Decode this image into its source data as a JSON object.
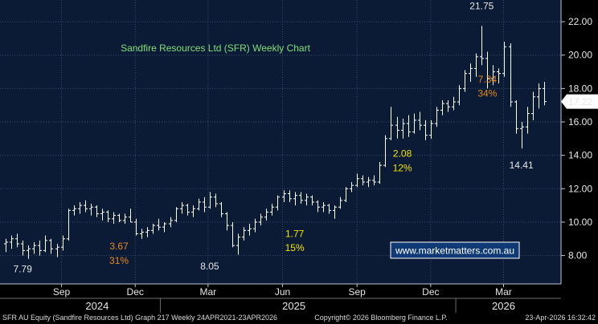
{
  "colors": {
    "background": "#000000",
    "plot_background": "#0b1b35",
    "grid": "#3a4d6e",
    "bars": "#ffffff",
    "title": "#7fe07a",
    "annotation_yellow": "#f2e400",
    "annotation_orange": "#e98a1d",
    "annotation_white": "#e6e6e6",
    "watermark_border": "#ffffff",
    "watermark_bg": "#0f3a75"
  },
  "chart_data": {
    "type": "ohlc",
    "title": "Sandfire Resources Ltd (SFR) Weekly Chart",
    "ylim": [
      6.3,
      23.3
    ],
    "y_ticks": [
      8,
      10,
      12,
      14,
      16,
      18,
      20,
      22
    ],
    "y_tick_labels": [
      "8.00",
      "10.00",
      "12.00",
      "14.00",
      "16.00",
      "18.00",
      "20.00",
      "22.00"
    ],
    "x_start": "2024-06-17",
    "x_end": "2026-05-11",
    "x_ticks": [
      {
        "label": "Sep",
        "date": "2024-09-01"
      },
      {
        "label": "Dec",
        "date": "2024-12-01"
      },
      {
        "label": "Mar",
        "date": "2025-03-01"
      },
      {
        "label": "Jun",
        "date": "2025-06-01"
      },
      {
        "label": "Sep",
        "date": "2025-09-01"
      },
      {
        "label": "Dec",
        "date": "2025-12-01"
      },
      {
        "label": "Mar",
        "date": "2026-03-01"
      }
    ],
    "years": [
      {
        "label": "2024",
        "date": "2024-10-15"
      },
      {
        "label": "2025",
        "date": "2025-06-15"
      },
      {
        "label": "2026",
        "date": "2026-03-01"
      }
    ],
    "last_price": "17.22",
    "last_price_value": 17.22,
    "bars": [
      {
        "x": "2024-06-24",
        "o": 8.7,
        "h": 9.0,
        "l": 8.2,
        "c": 8.8
      },
      {
        "x": "2024-07-01",
        "o": 8.8,
        "h": 9.2,
        "l": 8.4,
        "c": 9.0
      },
      {
        "x": "2024-07-08",
        "o": 9.0,
        "h": 9.3,
        "l": 8.5,
        "c": 8.7
      },
      {
        "x": "2024-07-15",
        "o": 8.7,
        "h": 8.9,
        "l": 8.0,
        "c": 8.3
      },
      {
        "x": "2024-07-22",
        "o": 8.3,
        "h": 8.6,
        "l": 7.8,
        "c": 8.4
      },
      {
        "x": "2024-07-29",
        "o": 8.4,
        "h": 8.8,
        "l": 8.1,
        "c": 8.6
      },
      {
        "x": "2024-08-05",
        "o": 8.6,
        "h": 8.9,
        "l": 8.0,
        "c": 8.3
      },
      {
        "x": "2024-08-12",
        "o": 8.3,
        "h": 9.2,
        "l": 8.2,
        "c": 8.9
      },
      {
        "x": "2024-08-19",
        "o": 8.9,
        "h": 9.0,
        "l": 8.1,
        "c": 8.4
      },
      {
        "x": "2024-08-26",
        "o": 8.4,
        "h": 8.7,
        "l": 7.9,
        "c": 8.5
      },
      {
        "x": "2024-09-02",
        "o": 8.5,
        "h": 9.2,
        "l": 8.3,
        "c": 9.0
      },
      {
        "x": "2024-09-09",
        "o": 9.0,
        "h": 10.8,
        "l": 8.9,
        "c": 10.7
      },
      {
        "x": "2024-09-16",
        "o": 10.7,
        "h": 11.0,
        "l": 10.4,
        "c": 10.8
      },
      {
        "x": "2024-09-23",
        "o": 10.8,
        "h": 11.2,
        "l": 10.5,
        "c": 11.0
      },
      {
        "x": "2024-09-30",
        "o": 11.0,
        "h": 11.3,
        "l": 10.6,
        "c": 10.8
      },
      {
        "x": "2024-10-07",
        "o": 10.8,
        "h": 11.1,
        "l": 10.4,
        "c": 10.9
      },
      {
        "x": "2024-10-14",
        "o": 10.9,
        "h": 11.0,
        "l": 10.3,
        "c": 10.5
      },
      {
        "x": "2024-10-21",
        "o": 10.5,
        "h": 10.8,
        "l": 10.1,
        "c": 10.6
      },
      {
        "x": "2024-10-28",
        "o": 10.6,
        "h": 10.7,
        "l": 10.0,
        "c": 10.2
      },
      {
        "x": "2024-11-04",
        "o": 10.2,
        "h": 10.6,
        "l": 9.9,
        "c": 10.4
      },
      {
        "x": "2024-11-11",
        "o": 10.4,
        "h": 10.5,
        "l": 10.0,
        "c": 10.1
      },
      {
        "x": "2024-11-18",
        "o": 10.1,
        "h": 10.5,
        "l": 9.9,
        "c": 10.3
      },
      {
        "x": "2024-11-25",
        "o": 10.3,
        "h": 10.8,
        "l": 10.0,
        "c": 10.0
      },
      {
        "x": "2024-12-02",
        "o": 10.0,
        "h": 10.2,
        "l": 9.2,
        "c": 9.3
      },
      {
        "x": "2024-12-09",
        "o": 9.3,
        "h": 9.6,
        "l": 9.0,
        "c": 9.4
      },
      {
        "x": "2024-12-16",
        "o": 9.4,
        "h": 9.7,
        "l": 9.1,
        "c": 9.5
      },
      {
        "x": "2024-12-23",
        "o": 9.5,
        "h": 9.9,
        "l": 9.3,
        "c": 9.8
      },
      {
        "x": "2024-12-30",
        "o": 9.8,
        "h": 10.2,
        "l": 9.5,
        "c": 9.7
      },
      {
        "x": "2025-01-06",
        "o": 9.7,
        "h": 10.0,
        "l": 9.4,
        "c": 9.9
      },
      {
        "x": "2025-01-13",
        "o": 9.9,
        "h": 10.3,
        "l": 9.7,
        "c": 10.1
      },
      {
        "x": "2025-01-20",
        "o": 10.1,
        "h": 10.9,
        "l": 10.0,
        "c": 10.8
      },
      {
        "x": "2025-01-27",
        "o": 10.8,
        "h": 11.2,
        "l": 10.5,
        "c": 11.0
      },
      {
        "x": "2025-02-03",
        "o": 11.0,
        "h": 11.1,
        "l": 10.4,
        "c": 10.6
      },
      {
        "x": "2025-02-10",
        "o": 10.6,
        "h": 11.0,
        "l": 10.3,
        "c": 10.8
      },
      {
        "x": "2025-02-17",
        "o": 10.8,
        "h": 11.4,
        "l": 10.7,
        "c": 11.2
      },
      {
        "x": "2025-02-24",
        "o": 11.2,
        "h": 11.5,
        "l": 10.6,
        "c": 10.9
      },
      {
        "x": "2025-03-03",
        "o": 10.9,
        "h": 11.8,
        "l": 10.8,
        "c": 11.5
      },
      {
        "x": "2025-03-10",
        "o": 11.5,
        "h": 11.7,
        "l": 10.9,
        "c": 11.1
      },
      {
        "x": "2025-03-17",
        "o": 11.1,
        "h": 11.2,
        "l": 10.3,
        "c": 10.5
      },
      {
        "x": "2025-03-24",
        "o": 10.5,
        "h": 10.6,
        "l": 9.5,
        "c": 9.8
      },
      {
        "x": "2025-03-31",
        "o": 9.8,
        "h": 10.0,
        "l": 8.5,
        "c": 8.6
      },
      {
        "x": "2025-04-07",
        "o": 8.6,
        "h": 9.3,
        "l": 8.05,
        "c": 9.1
      },
      {
        "x": "2025-04-14",
        "o": 9.1,
        "h": 9.7,
        "l": 8.9,
        "c": 9.5
      },
      {
        "x": "2025-04-21",
        "o": 9.5,
        "h": 9.9,
        "l": 9.2,
        "c": 9.6
      },
      {
        "x": "2025-04-28",
        "o": 9.6,
        "h": 10.2,
        "l": 9.4,
        "c": 10.0
      },
      {
        "x": "2025-05-05",
        "o": 10.0,
        "h": 10.5,
        "l": 9.8,
        "c": 10.3
      },
      {
        "x": "2025-05-12",
        "o": 10.3,
        "h": 10.8,
        "l": 10.1,
        "c": 10.6
      },
      {
        "x": "2025-05-19",
        "o": 10.6,
        "h": 11.1,
        "l": 10.4,
        "c": 10.9
      },
      {
        "x": "2025-05-26",
        "o": 10.9,
        "h": 11.6,
        "l": 10.7,
        "c": 11.5
      },
      {
        "x": "2025-06-02",
        "o": 11.5,
        "h": 11.9,
        "l": 11.2,
        "c": 11.7
      },
      {
        "x": "2025-06-09",
        "o": 11.7,
        "h": 11.9,
        "l": 11.2,
        "c": 11.4
      },
      {
        "x": "2025-06-16",
        "o": 11.4,
        "h": 11.8,
        "l": 11.0,
        "c": 11.6
      },
      {
        "x": "2025-06-23",
        "o": 11.6,
        "h": 11.8,
        "l": 11.1,
        "c": 11.3
      },
      {
        "x": "2025-06-30",
        "o": 11.3,
        "h": 11.7,
        "l": 11.0,
        "c": 11.5
      },
      {
        "x": "2025-07-07",
        "o": 11.5,
        "h": 11.6,
        "l": 11.0,
        "c": 11.2
      },
      {
        "x": "2025-07-14",
        "o": 11.2,
        "h": 11.3,
        "l": 10.6,
        "c": 10.9
      },
      {
        "x": "2025-07-21",
        "o": 10.9,
        "h": 11.2,
        "l": 10.6,
        "c": 11.0
      },
      {
        "x": "2025-07-28",
        "o": 11.0,
        "h": 11.1,
        "l": 10.5,
        "c": 10.7
      },
      {
        "x": "2025-08-04",
        "o": 10.7,
        "h": 11.0,
        "l": 10.2,
        "c": 10.9
      },
      {
        "x": "2025-08-11",
        "o": 10.9,
        "h": 11.5,
        "l": 10.8,
        "c": 11.3
      },
      {
        "x": "2025-08-18",
        "o": 11.3,
        "h": 12.1,
        "l": 11.2,
        "c": 12.0
      },
      {
        "x": "2025-08-25",
        "o": 12.0,
        "h": 12.4,
        "l": 11.8,
        "c": 12.2
      },
      {
        "x": "2025-09-01",
        "o": 12.2,
        "h": 12.9,
        "l": 12.1,
        "c": 12.6
      },
      {
        "x": "2025-09-08",
        "o": 12.6,
        "h": 12.8,
        "l": 12.2,
        "c": 12.4
      },
      {
        "x": "2025-09-15",
        "o": 12.4,
        "h": 12.7,
        "l": 12.1,
        "c": 12.5
      },
      {
        "x": "2025-09-22",
        "o": 12.5,
        "h": 12.8,
        "l": 12.2,
        "c": 12.4
      },
      {
        "x": "2025-09-29",
        "o": 12.4,
        "h": 13.6,
        "l": 12.3,
        "c": 13.4
      },
      {
        "x": "2025-10-06",
        "o": 13.4,
        "h": 15.2,
        "l": 13.3,
        "c": 15.0
      },
      {
        "x": "2025-10-13",
        "o": 15.0,
        "h": 16.9,
        "l": 14.9,
        "c": 15.8
      },
      {
        "x": "2025-10-20",
        "o": 15.8,
        "h": 16.3,
        "l": 15.0,
        "c": 15.5
      },
      {
        "x": "2025-10-27",
        "o": 15.5,
        "h": 16.2,
        "l": 15.0,
        "c": 15.9
      },
      {
        "x": "2025-11-03",
        "o": 15.9,
        "h": 16.4,
        "l": 15.1,
        "c": 15.4
      },
      {
        "x": "2025-11-10",
        "o": 15.4,
        "h": 16.5,
        "l": 15.3,
        "c": 16.1
      },
      {
        "x": "2025-11-17",
        "o": 16.1,
        "h": 16.6,
        "l": 15.5,
        "c": 15.8
      },
      {
        "x": "2025-11-24",
        "o": 15.8,
        "h": 16.1,
        "l": 14.9,
        "c": 15.2
      },
      {
        "x": "2025-12-01",
        "o": 15.2,
        "h": 16.1,
        "l": 15.0,
        "c": 15.9
      },
      {
        "x": "2025-12-08",
        "o": 15.9,
        "h": 16.9,
        "l": 15.7,
        "c": 16.7
      },
      {
        "x": "2025-12-15",
        "o": 16.7,
        "h": 17.3,
        "l": 16.4,
        "c": 17.1
      },
      {
        "x": "2025-12-22",
        "o": 17.1,
        "h": 17.3,
        "l": 16.6,
        "c": 16.9
      },
      {
        "x": "2025-12-29",
        "o": 16.9,
        "h": 17.5,
        "l": 16.7,
        "c": 17.2
      },
      {
        "x": "2026-01-05",
        "o": 17.2,
        "h": 18.2,
        "l": 17.0,
        "c": 18.0
      },
      {
        "x": "2026-01-12",
        "o": 18.0,
        "h": 19.1,
        "l": 17.8,
        "c": 18.9
      },
      {
        "x": "2026-01-19",
        "o": 18.9,
        "h": 19.5,
        "l": 18.4,
        "c": 19.2
      },
      {
        "x": "2026-01-26",
        "o": 19.2,
        "h": 20.1,
        "l": 18.7,
        "c": 19.9
      },
      {
        "x": "2026-02-02",
        "o": 19.9,
        "h": 21.75,
        "l": 19.4,
        "c": 19.8
      },
      {
        "x": "2026-02-09",
        "o": 19.8,
        "h": 20.2,
        "l": 18.0,
        "c": 18.6
      },
      {
        "x": "2026-02-16",
        "o": 18.6,
        "h": 19.4,
        "l": 18.2,
        "c": 19.0
      },
      {
        "x": "2026-02-23",
        "o": 19.0,
        "h": 19.2,
        "l": 18.3,
        "c": 18.9
      },
      {
        "x": "2026-03-02",
        "o": 18.9,
        "h": 20.8,
        "l": 18.7,
        "c": 20.5
      },
      {
        "x": "2026-03-09",
        "o": 20.5,
        "h": 20.7,
        "l": 16.9,
        "c": 17.2
      },
      {
        "x": "2026-03-16",
        "o": 17.2,
        "h": 17.3,
        "l": 15.3,
        "c": 15.6
      },
      {
        "x": "2026-03-23",
        "o": 15.6,
        "h": 16.0,
        "l": 14.41,
        "c": 15.7
      },
      {
        "x": "2026-03-30",
        "o": 15.7,
        "h": 16.9,
        "l": 15.3,
        "c": 16.5
      },
      {
        "x": "2026-04-06",
        "o": 16.5,
        "h": 17.8,
        "l": 16.1,
        "c": 17.5
      },
      {
        "x": "2026-04-13",
        "o": 17.5,
        "h": 18.3,
        "l": 16.8,
        "c": 18.0
      },
      {
        "x": "2026-04-20",
        "o": 18.0,
        "h": 18.4,
        "l": 17.0,
        "c": 17.22
      }
    ],
    "annotations": [
      {
        "text": "21.75",
        "color": "annotation_white",
        "x": "2026-02-02",
        "y": 22.95
      },
      {
        "text": "7.34",
        "color": "annotation_orange",
        "x": "2026-02-09",
        "y": 18.55
      },
      {
        "text": "34%",
        "color": "annotation_orange",
        "x": "2026-02-09",
        "y": 17.7
      },
      {
        "text": "2.08",
        "color": "annotation_yellow",
        "x": "2025-10-27",
        "y": 14.1
      },
      {
        "text": "12%",
        "color": "annotation_yellow",
        "x": "2025-10-27",
        "y": 13.25
      },
      {
        "text": "14.41",
        "color": "annotation_white",
        "x": "2026-03-23",
        "y": 13.4
      },
      {
        "text": "1.77",
        "color": "annotation_yellow",
        "x": "2025-06-16",
        "y": 9.3
      },
      {
        "text": "15%",
        "color": "annotation_yellow",
        "x": "2025-06-16",
        "y": 8.45
      },
      {
        "text": "3.67",
        "color": "annotation_orange",
        "x": "2024-11-11",
        "y": 8.55
      },
      {
        "text": "31%",
        "color": "annotation_orange",
        "x": "2024-11-11",
        "y": 7.7
      },
      {
        "text": "8.05",
        "color": "annotation_white",
        "x": "2025-03-03",
        "y": 7.35
      },
      {
        "text": "7.79",
        "color": "annotation_white",
        "x": "2024-07-15",
        "y": 7.2
      }
    ]
  },
  "watermark": "www.marketmatters.com.au",
  "footer": {
    "left": "SFR AU Equity (Sandfire Resources Ltd) Graph 217 Weekly 24APR2021-23APR2026",
    "center": "Copyright© 2026 Bloomberg Finance L.P.",
    "right": "23-Apr-2026 16:32:42"
  }
}
